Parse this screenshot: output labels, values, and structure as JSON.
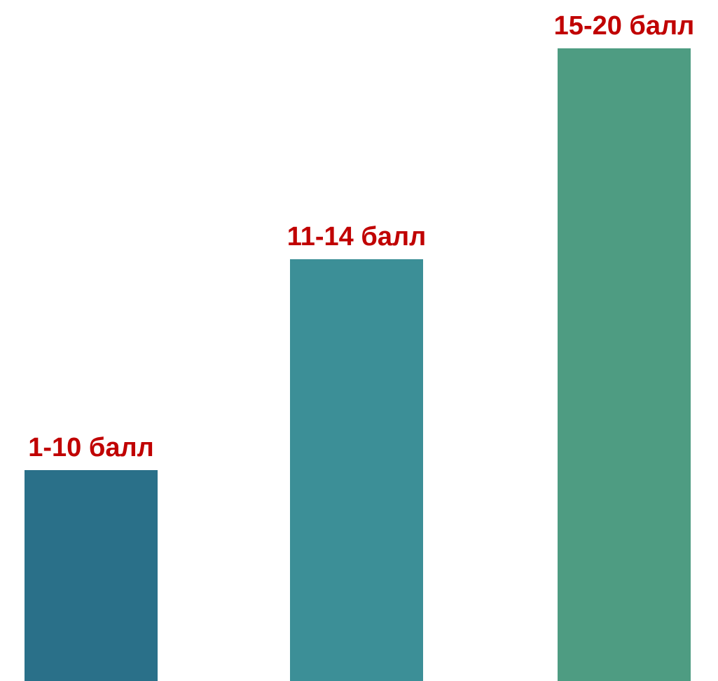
{
  "chart_data": {
    "type": "bar",
    "title": "",
    "xlabel": "",
    "ylabel": "",
    "categories": [
      "1-10 балл",
      "11-14 балл",
      "15-20 балл"
    ],
    "values": [
      1,
      2,
      3
    ],
    "ylim": [
      0,
      3
    ],
    "grid": false,
    "legend": "none",
    "colors": [
      "#2a7089",
      "#3c8f97",
      "#4e9c82"
    ],
    "label_color": "#c00000"
  }
}
